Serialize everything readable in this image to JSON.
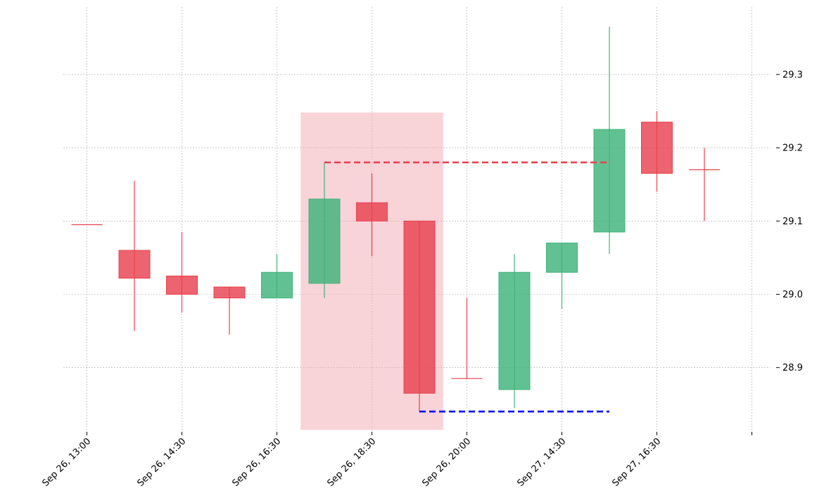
{
  "chart_data": {
    "type": "candlestick",
    "title": "",
    "xlabel": "",
    "ylabel": "",
    "grid": true,
    "ylim": [
      28.815,
      29.385
    ],
    "y_ticks": [
      {
        "value": 28.9,
        "label": "28.9"
      },
      {
        "value": 29.0,
        "label": "29.0"
      },
      {
        "value": 29.1,
        "label": "29.1"
      },
      {
        "value": 29.2,
        "label": "29.2"
      },
      {
        "value": 29.3,
        "label": "29.3"
      }
    ],
    "x_ticks": [
      {
        "index": 0,
        "label": "Sep 26, 13:00"
      },
      {
        "index": 2,
        "label": "Sep 26, 14:30"
      },
      {
        "index": 4,
        "label": "Sep 26, 16:30"
      },
      {
        "index": 6,
        "label": "Sep 26, 18:30"
      },
      {
        "index": 8,
        "label": "Sep 26, 20:00"
      },
      {
        "index": 10,
        "label": "Sep 27, 14:30"
      },
      {
        "index": 12,
        "label": "Sep 27, 16:30"
      },
      {
        "index": 14,
        "label": ""
      }
    ],
    "candles": [
      {
        "index": 0,
        "open": 29.095,
        "high": 29.095,
        "low": 29.095,
        "close": 29.095
      },
      {
        "index": 1,
        "open": 29.06,
        "high": 29.155,
        "low": 28.95,
        "close": 29.022
      },
      {
        "index": 2,
        "open": 29.025,
        "high": 29.085,
        "low": 28.975,
        "close": 29.0
      },
      {
        "index": 3,
        "open": 29.01,
        "high": 29.01,
        "low": 28.945,
        "close": 28.995
      },
      {
        "index": 4,
        "open": 28.995,
        "high": 29.055,
        "low": 28.995,
        "close": 29.03
      },
      {
        "index": 5,
        "open": 29.015,
        "high": 29.18,
        "low": 28.995,
        "close": 29.13
      },
      {
        "index": 6,
        "open": 29.125,
        "high": 29.165,
        "low": 29.052,
        "close": 29.1
      },
      {
        "index": 7,
        "open": 29.1,
        "high": 29.1,
        "low": 28.84,
        "close": 28.865
      },
      {
        "index": 8,
        "open": 28.885,
        "high": 28.995,
        "low": 28.885,
        "close": 28.885
      },
      {
        "index": 9,
        "open": 28.87,
        "high": 29.055,
        "low": 28.845,
        "close": 29.03
      },
      {
        "index": 10,
        "open": 29.03,
        "high": 29.07,
        "low": 28.98,
        "close": 29.07
      },
      {
        "index": 11,
        "open": 29.085,
        "high": 29.365,
        "low": 29.055,
        "close": 29.225
      },
      {
        "index": 12,
        "open": 29.235,
        "high": 29.25,
        "low": 29.14,
        "close": 29.165
      },
      {
        "index": 13,
        "open": 29.17,
        "high": 29.2,
        "low": 29.1,
        "close": 29.17
      }
    ],
    "highlight": {
      "from_index": 4.5,
      "to_index": 7.5,
      "y_top": 29.248,
      "y_bottom": 28.815,
      "color": "#f2a7b1"
    },
    "resistance_line": {
      "y": 29.18,
      "from_index": 5,
      "to_index": 11,
      "color": "#e8424f"
    },
    "support_line": {
      "y": 28.84,
      "from_index": 7,
      "to_index": 11,
      "color": "#0000ff"
    },
    "colors": {
      "up": "#3fb37a",
      "down": "#e8424f",
      "grid": "#aaaaaa"
    }
  }
}
